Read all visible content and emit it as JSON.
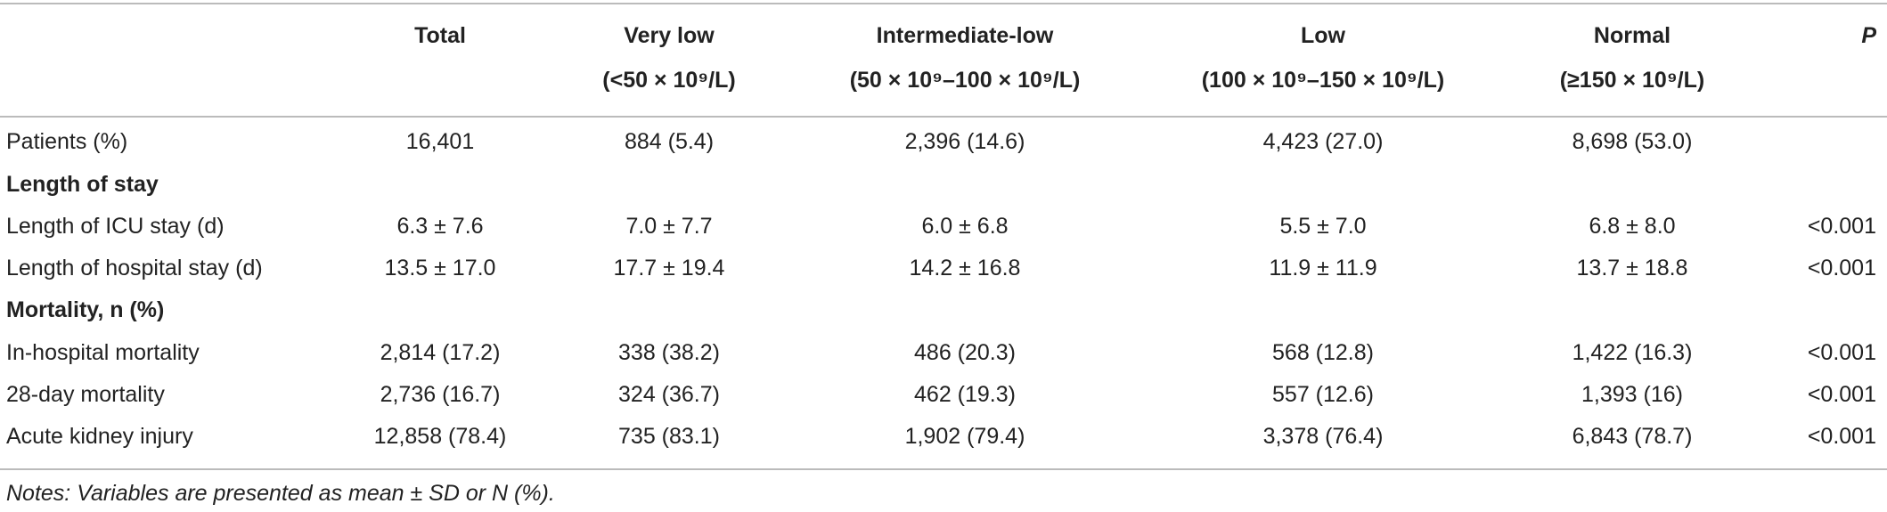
{
  "table": {
    "columns": [
      {
        "label": "Total"
      },
      {
        "label": "Very low",
        "sub": "(<50 × 10⁹/L)"
      },
      {
        "label": "Intermediate-low",
        "sub": "(50 × 10⁹–100 × 10⁹/L)"
      },
      {
        "label": "Low",
        "sub": "(100 × 10⁹–150 × 10⁹/L)"
      },
      {
        "label": "Normal",
        "sub": "(≥150 × 10⁹/L)"
      },
      {
        "label": "P"
      }
    ],
    "rows": [
      [
        "Patients (%)",
        "16,401",
        "884 (5.4)",
        "2,396 (14.6)",
        "4,423 (27.0)",
        "8,698 (53.0)"
      ],
      [
        "Length of stay"
      ],
      [
        "Length of ICU stay (d)",
        "6.3 ± 7.6",
        "7.0 ± 7.7",
        "6.0 ± 6.8",
        "5.5 ± 7.0",
        "6.8 ± 8.0",
        "<0.001"
      ],
      [
        "Length of hospital stay (d)",
        "13.5 ± 17.0",
        "17.7 ± 19.4",
        "14.2 ± 16.8",
        "11.9 ± 11.9",
        "13.7 ± 18.8",
        "<0.001"
      ],
      [
        "Mortality, n (%)"
      ],
      [
        "In-hospital mortality",
        "2,814 (17.2)",
        "338 (38.2)",
        "486 (20.3)",
        "568 (12.8)",
        "1,422 (16.3)",
        "<0.001"
      ],
      [
        "28-day mortality",
        "2,736 (16.7)",
        "324 (36.7)",
        "462 (19.3)",
        "557 (12.6)",
        "1,393 (16)",
        "<0.001"
      ],
      [
        "Acute kidney injury",
        "12,858 (78.4)",
        "735 (83.1)",
        "1,902 (79.4)",
        "3,378 (76.4)",
        "6,843 (78.7)",
        "<0.001"
      ]
    ],
    "notes": "Notes: Variables are presented as mean ± SD or N (%)."
  }
}
